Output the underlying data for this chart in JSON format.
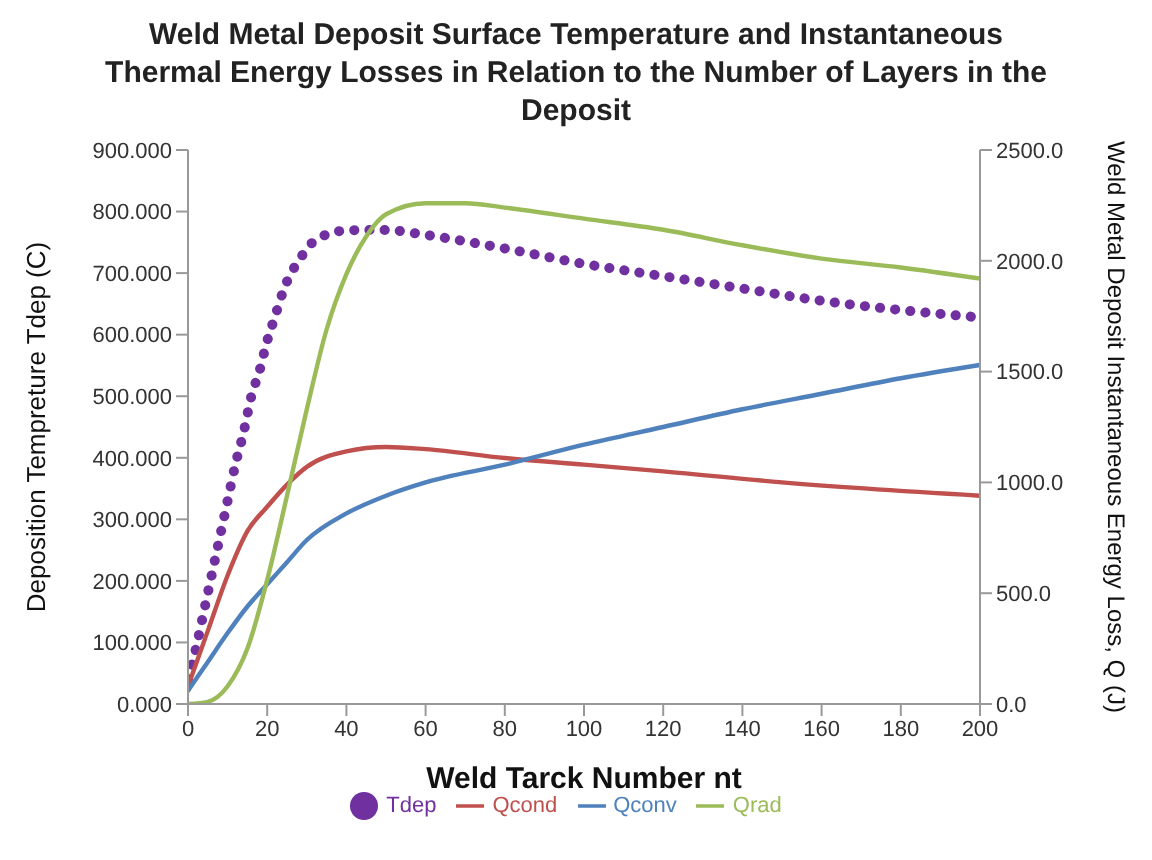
{
  "chart_data": {
    "type": "line",
    "title": "Weld Metal Deposit Surface Temperature and Instantaneous Thermal Energy Losses in Relation to the Number of Layers in the Deposit",
    "xlabel": "Weld Tarck Number nt",
    "ylabel": "Deposition Tempreture Tdep (C)",
    "y2label": "Weld Metal Deposit Instantaneous Energy Loss, Q (J)",
    "xlim": [
      0,
      200
    ],
    "xticks": [
      0,
      20,
      40,
      60,
      80,
      100,
      120,
      140,
      160,
      180,
      200
    ],
    "ylim": [
      0,
      900
    ],
    "yticks": [
      {
        "value": 0,
        "label": "0.000"
      },
      {
        "value": 100,
        "label": "100.000"
      },
      {
        "value": 200,
        "label": "200.000"
      },
      {
        "value": 300,
        "label": "300.000"
      },
      {
        "value": 400,
        "label": "400.000"
      },
      {
        "value": 500,
        "label": "500.000"
      },
      {
        "value": 600,
        "label": "600.000"
      },
      {
        "value": 700,
        "label": "700.000"
      },
      {
        "value": 800,
        "label": "800.000"
      },
      {
        "value": 900,
        "label": "900.000"
      }
    ],
    "y2lim": [
      0,
      2500
    ],
    "y2ticks": [
      {
        "value": 0,
        "label": "0.0"
      },
      {
        "value": 500,
        "label": "500.0"
      },
      {
        "value": 1000,
        "label": "1000.0"
      },
      {
        "value": 1500,
        "label": "1500.0"
      },
      {
        "value": 2000,
        "label": "2000.0"
      },
      {
        "value": 2500,
        "label": "2500.0"
      }
    ],
    "grid": false,
    "legend": "bottom",
    "marker": "none",
    "series": [
      {
        "name": "Tdep",
        "color": "#7030a0",
        "line_style": "dotted",
        "x": [
          0,
          2,
          4,
          6,
          8,
          10,
          12,
          14,
          16,
          18,
          20,
          22,
          24,
          26,
          28,
          30,
          34,
          38,
          44,
          50,
          60,
          80,
          100,
          120,
          140,
          160,
          180,
          200
        ],
        "values": [
          40,
          90,
          150,
          210,
          270,
          330,
          390,
          440,
          500,
          540,
          590,
          630,
          670,
          700,
          720,
          740,
          760,
          768,
          770,
          770,
          762,
          740,
          715,
          695,
          675,
          655,
          640,
          628
        ]
      },
      {
        "name": "Qcond",
        "color": "#c0504d",
        "axis": "y2",
        "line_style": "solid",
        "x": [
          0,
          5,
          10,
          15,
          20,
          25,
          30,
          40,
          50,
          60,
          80,
          100,
          120,
          150,
          200
        ],
        "values": [
          80,
          330,
          580,
          780,
          890,
          990,
          1070,
          1140,
          1160,
          1150,
          1110,
          1080,
          1050,
          1000,
          940
        ]
      },
      {
        "name": "Qconv",
        "color": "#4f81bd",
        "axis": "y2",
        "line_style": "solid",
        "x": [
          0,
          5,
          10,
          15,
          20,
          25,
          30,
          40,
          50,
          60,
          80,
          100,
          120,
          140,
          160,
          180,
          200
        ],
        "values": [
          60,
          190,
          320,
          440,
          540,
          640,
          740,
          860,
          940,
          1000,
          1080,
          1170,
          1250,
          1330,
          1400,
          1470,
          1530
        ]
      },
      {
        "name": "Qrad",
        "color": "#9bbb59",
        "axis": "y2",
        "line_style": "solid",
        "x": [
          0,
          5,
          10,
          15,
          20,
          25,
          30,
          35,
          40,
          45,
          50,
          60,
          70,
          80,
          100,
          120,
          140,
          160,
          180,
          200
        ],
        "values": [
          0,
          10,
          80,
          250,
          560,
          940,
          1330,
          1690,
          1940,
          2110,
          2210,
          2260,
          2260,
          2240,
          2190,
          2140,
          2070,
          2010,
          1970,
          1920
        ]
      }
    ]
  }
}
